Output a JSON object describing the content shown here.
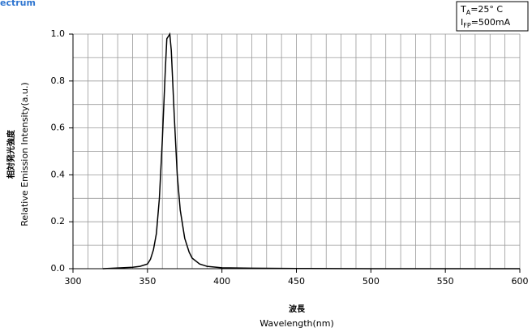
{
  "chart_data": {
    "type": "line",
    "title": "ectrum",
    "xlabel": [
      "波長",
      "Wavelength(nm)"
    ],
    "ylabel": [
      "相対発光強度",
      "Relative Emission Intensity(a.u.)"
    ],
    "annotations": [
      {
        "main": "T",
        "sub": "A",
        "rest": "=25° C"
      },
      {
        "main": "I",
        "sub": "FP",
        "rest": "=500mA"
      }
    ],
    "x": [
      320,
      330,
      340,
      345,
      350,
      352,
      354,
      356,
      358,
      360,
      362,
      363,
      364,
      365,
      366,
      368,
      370,
      372,
      375,
      378,
      380,
      385,
      390,
      400,
      420,
      450,
      500,
      600
    ],
    "values": [
      0,
      0.003,
      0.006,
      0.01,
      0.02,
      0.04,
      0.08,
      0.15,
      0.3,
      0.55,
      0.85,
      0.98,
      0.99,
      1.0,
      0.93,
      0.65,
      0.4,
      0.25,
      0.13,
      0.07,
      0.045,
      0.02,
      0.01,
      0.004,
      0.002,
      0.001,
      0,
      0
    ],
    "color": "#000000",
    "xlim": [
      300,
      600
    ],
    "ylim": [
      0,
      1
    ],
    "xticks": [
      300,
      350,
      400,
      450,
      500,
      550,
      600
    ],
    "yticks": [
      {
        "value": 0,
        "label": "0.0"
      },
      0.2,
      0.4,
      0.6,
      0.8,
      {
        "value": 1,
        "label": "1.0"
      }
    ],
    "xgrid": [
      310,
      320,
      330,
      340,
      350,
      360,
      370,
      380,
      390,
      400,
      410,
      420,
      430,
      440,
      450,
      460,
      470,
      480,
      490,
      500,
      510,
      520,
      530,
      540,
      550,
      560,
      570,
      580,
      590,
      600
    ],
    "ygrid": [
      0.1,
      0.2,
      0.3,
      0.4,
      0.5,
      0.6,
      0.7,
      0.8,
      0.9,
      1.0
    ],
    "grid": true
  }
}
